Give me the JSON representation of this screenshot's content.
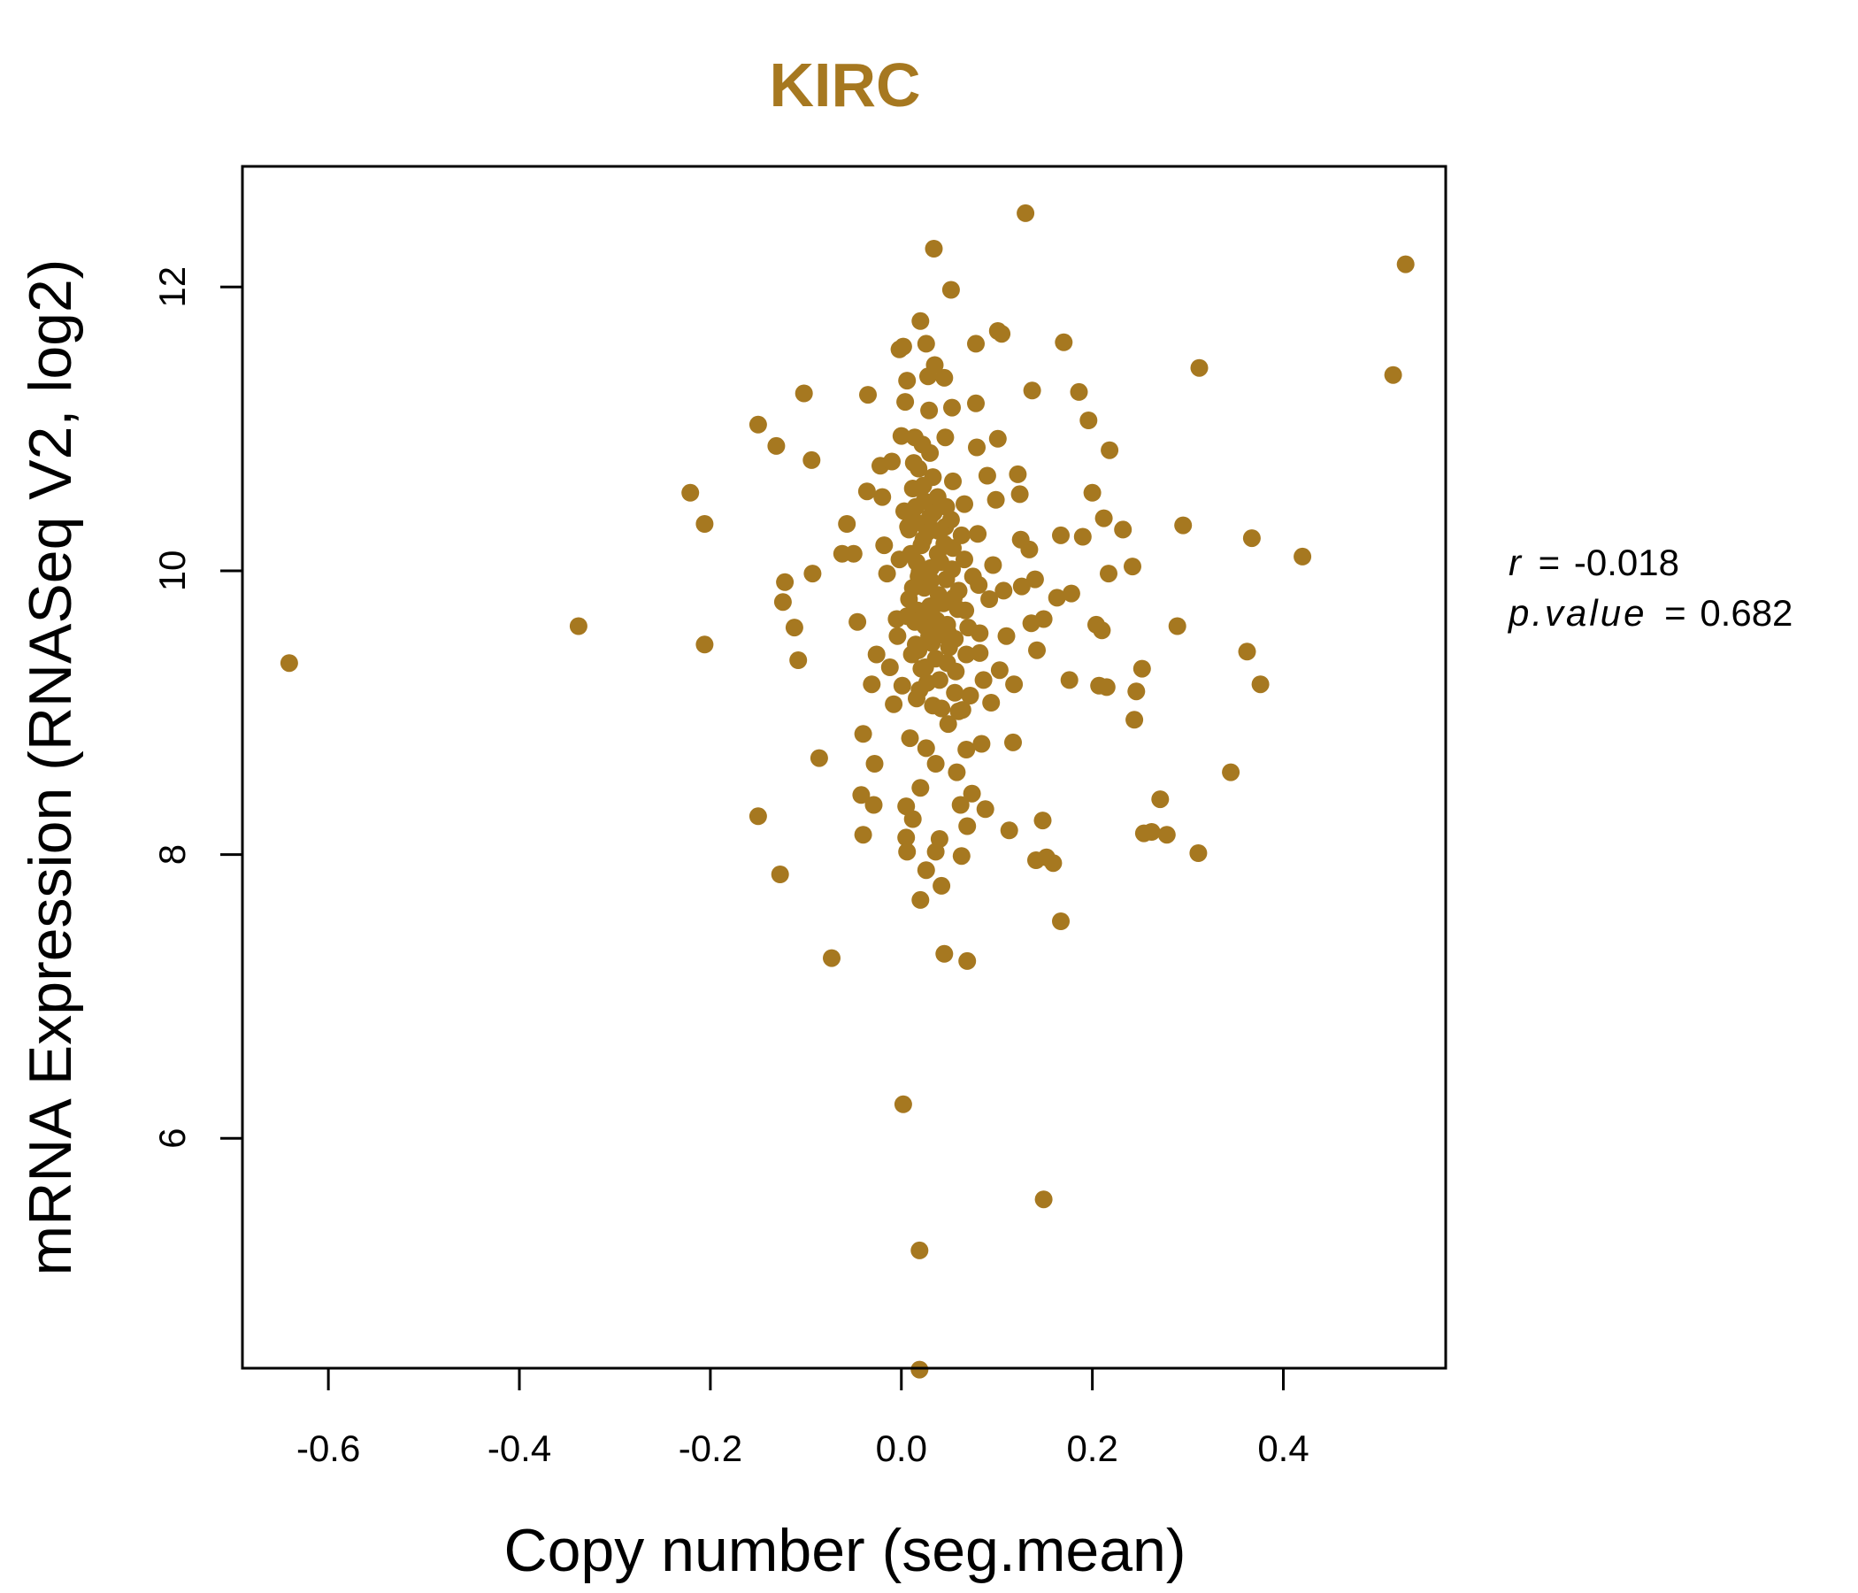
{
  "colors": {
    "point": "#A67820",
    "title": "#A67820",
    "axis": "#000000"
  },
  "stats": {
    "r_symbol": "r",
    "r_equals": "=",
    "r_value": "-0.018",
    "p_symbol": "p.value",
    "p_equals": "=",
    "p_value": "0.682"
  },
  "chart_data": {
    "type": "scatter",
    "title": "KIRC",
    "xlabel": "Copy number (seg.mean)",
    "ylabel": "mRNA Expression (RNASeq V2, log2)",
    "xlim": [
      -0.69,
      0.57
    ],
    "ylim": [
      4.38,
      12.85
    ],
    "xticks": [
      {
        "value": -0.6,
        "label": "-0.6"
      },
      {
        "value": -0.4,
        "label": "-0.4"
      },
      {
        "value": -0.2,
        "label": "-0.2"
      },
      {
        "value": 0.0,
        "label": "0.0"
      },
      {
        "value": 0.2,
        "label": "0.2"
      },
      {
        "value": 0.4,
        "label": "0.4"
      }
    ],
    "yticks": [
      {
        "value": 6,
        "label": "6"
      },
      {
        "value": 8,
        "label": "8"
      },
      {
        "value": 10,
        "label": "10"
      },
      {
        "value": 12,
        "label": "12"
      }
    ],
    "points": [
      [
        -0.641,
        9.35
      ],
      [
        -0.338,
        9.61
      ],
      [
        -0.221,
        10.55
      ],
      [
        -0.206,
        10.33
      ],
      [
        -0.206,
        9.48
      ],
      [
        -0.15,
        11.03
      ],
      [
        -0.131,
        10.88
      ],
      [
        -0.15,
        8.27
      ],
      [
        -0.127,
        7.86
      ],
      [
        -0.122,
        9.92
      ],
      [
        -0.124,
        9.78
      ],
      [
        -0.112,
        9.6
      ],
      [
        -0.108,
        9.37
      ],
      [
        -0.102,
        11.25
      ],
      [
        -0.094,
        10.78
      ],
      [
        -0.093,
        9.98
      ],
      [
        -0.086,
        8.68
      ],
      [
        -0.073,
        7.27
      ],
      [
        -0.062,
        10.12
      ],
      [
        -0.057,
        10.33
      ],
      [
        -0.05,
        10.12
      ],
      [
        -0.046,
        9.64
      ],
      [
        -0.042,
        8.42
      ],
      [
        -0.04,
        8.85
      ],
      [
        -0.04,
        8.14
      ],
      [
        -0.035,
        11.24
      ],
      [
        -0.036,
        10.56
      ],
      [
        -0.031,
        9.2
      ],
      [
        -0.029,
        8.35
      ],
      [
        -0.028,
        8.64
      ],
      [
        -0.026,
        9.41
      ],
      [
        -0.022,
        10.74
      ],
      [
        -0.02,
        10.52
      ],
      [
        -0.018,
        10.18
      ],
      [
        -0.015,
        9.98
      ],
      [
        -0.012,
        9.32
      ],
      [
        -0.01,
        10.77
      ],
      [
        -0.008,
        9.06
      ],
      [
        -0.005,
        9.66
      ],
      [
        -0.002,
        11.56
      ],
      [
        0.0,
        10.95
      ],
      [
        0.002,
        11.58
      ],
      [
        0.004,
        11.19
      ],
      [
        0.006,
        11.34
      ],
      [
        0.007,
        10.31
      ],
      [
        0.008,
        9.8
      ],
      [
        0.009,
        8.82
      ],
      [
        0.005,
        8.34
      ],
      [
        0.005,
        8.12
      ],
      [
        0.006,
        8.02
      ],
      [
        0.002,
        6.24
      ],
      [
        0.012,
        8.25
      ],
      [
        0.014,
        10.94
      ],
      [
        0.015,
        10.45
      ],
      [
        0.016,
        10.06
      ],
      [
        0.017,
        9.72
      ],
      [
        0.018,
        9.44
      ],
      [
        0.019,
        9.16
      ],
      [
        0.02,
        11.76
      ],
      [
        0.02,
        8.47
      ],
      [
        0.02,
        7.68
      ],
      [
        0.019,
        5.21
      ],
      [
        0.019,
        4.37
      ],
      [
        0.022,
        10.89
      ],
      [
        0.023,
        10.6
      ],
      [
        0.023,
        10.22
      ],
      [
        0.024,
        9.88
      ],
      [
        0.025,
        9.61
      ],
      [
        0.025,
        9.32
      ],
      [
        0.026,
        11.6
      ],
      [
        0.026,
        8.75
      ],
      [
        0.026,
        7.89
      ],
      [
        0.028,
        11.37
      ],
      [
        0.029,
        11.13
      ],
      [
        0.03,
        10.83
      ],
      [
        0.03,
        10.38
      ],
      [
        0.031,
        10.02
      ],
      [
        0.032,
        9.73
      ],
      [
        0.032,
        9.49
      ],
      [
        0.033,
        9.05
      ],
      [
        0.034,
        12.27
      ],
      [
        0.035,
        11.45
      ],
      [
        0.036,
        8.64
      ],
      [
        0.036,
        8.02
      ],
      [
        0.038,
        10.52
      ],
      [
        0.038,
        10.12
      ],
      [
        0.039,
        9.83
      ],
      [
        0.04,
        9.55
      ],
      [
        0.04,
        9.23
      ],
      [
        0.04,
        8.11
      ],
      [
        0.042,
        7.78
      ],
      [
        0.045,
        11.36
      ],
      [
        0.046,
        10.94
      ],
      [
        0.046,
        10.31
      ],
      [
        0.047,
        9.94
      ],
      [
        0.048,
        9.62
      ],
      [
        0.048,
        9.35
      ],
      [
        0.049,
        8.92
      ],
      [
        0.045,
        7.3
      ],
      [
        0.052,
        11.98
      ],
      [
        0.053,
        11.15
      ],
      [
        0.054,
        10.63
      ],
      [
        0.054,
        10.16
      ],
      [
        0.055,
        9.81
      ],
      [
        0.056,
        9.52
      ],
      [
        0.058,
        8.58
      ],
      [
        0.06,
        9.01
      ],
      [
        0.062,
        8.35
      ],
      [
        0.063,
        7.99
      ],
      [
        0.066,
        10.47
      ],
      [
        0.066,
        10.08
      ],
      [
        0.067,
        9.72
      ],
      [
        0.068,
        9.41
      ],
      [
        0.068,
        8.74
      ],
      [
        0.069,
        8.2
      ],
      [
        0.069,
        7.25
      ],
      [
        0.072,
        9.12
      ],
      [
        0.074,
        8.43
      ],
      [
        0.078,
        11.6
      ],
      [
        0.078,
        11.18
      ],
      [
        0.079,
        10.87
      ],
      [
        0.08,
        10.26
      ],
      [
        0.081,
        9.9
      ],
      [
        0.082,
        9.56
      ],
      [
        0.084,
        8.78
      ],
      [
        0.086,
        9.23
      ],
      [
        0.088,
        8.32
      ],
      [
        0.09,
        10.67
      ],
      [
        0.092,
        9.8
      ],
      [
        0.094,
        9.07
      ],
      [
        0.096,
        10.04
      ],
      [
        0.099,
        10.5
      ],
      [
        0.101,
        11.69
      ],
      [
        0.101,
        10.93
      ],
      [
        0.103,
        9.3
      ],
      [
        0.105,
        11.67
      ],
      [
        0.107,
        9.86
      ],
      [
        0.11,
        9.54
      ],
      [
        0.113,
        8.17
      ],
      [
        0.117,
        8.79
      ],
      [
        0.118,
        9.2
      ],
      [
        0.122,
        10.68
      ],
      [
        0.124,
        10.54
      ],
      [
        0.125,
        10.22
      ],
      [
        0.126,
        9.89
      ],
      [
        0.13,
        12.52
      ],
      [
        0.134,
        10.15
      ],
      [
        0.136,
        9.63
      ],
      [
        0.137,
        11.27
      ],
      [
        0.14,
        9.94
      ],
      [
        0.141,
        7.96
      ],
      [
        0.142,
        9.44
      ],
      [
        0.148,
        8.24
      ],
      [
        0.149,
        9.66
      ],
      [
        0.149,
        5.57
      ],
      [
        0.152,
        7.98
      ],
      [
        0.159,
        7.94
      ],
      [
        0.163,
        9.81
      ],
      [
        0.167,
        7.53
      ],
      [
        0.167,
        10.25
      ],
      [
        0.17,
        11.61
      ],
      [
        0.176,
        9.23
      ],
      [
        0.178,
        9.84
      ],
      [
        0.186,
        11.26
      ],
      [
        0.19,
        10.24
      ],
      [
        0.196,
        11.06
      ],
      [
        0.2,
        10.55
      ],
      [
        0.204,
        9.62
      ],
      [
        0.207,
        9.19
      ],
      [
        0.21,
        9.58
      ],
      [
        0.212,
        10.37
      ],
      [
        0.215,
        9.18
      ],
      [
        0.217,
        9.98
      ],
      [
        0.218,
        10.85
      ],
      [
        0.232,
        10.29
      ],
      [
        0.242,
        10.03
      ],
      [
        0.244,
        8.95
      ],
      [
        0.246,
        9.15
      ],
      [
        0.252,
        9.31
      ],
      [
        0.254,
        8.15
      ],
      [
        0.262,
        8.16
      ],
      [
        0.271,
        8.39
      ],
      [
        0.278,
        8.14
      ],
      [
        0.289,
        9.61
      ],
      [
        0.295,
        10.32
      ],
      [
        0.311,
        8.01
      ],
      [
        0.312,
        11.43
      ],
      [
        0.345,
        8.58
      ],
      [
        0.362,
        9.43
      ],
      [
        0.367,
        10.23
      ],
      [
        0.376,
        9.2
      ],
      [
        0.42,
        10.1
      ],
      [
        0.515,
        11.38
      ],
      [
        0.528,
        12.16
      ],
      [
        0.01,
        10.12
      ],
      [
        0.012,
        9.88
      ],
      [
        0.014,
        9.64
      ],
      [
        0.016,
        10.34
      ],
      [
        0.018,
        9.96
      ],
      [
        0.021,
        10.18
      ],
      [
        0.024,
        9.71
      ],
      [
        0.027,
        10.27
      ],
      [
        0.029,
        9.54
      ],
      [
        0.031,
        9.93
      ],
      [
        0.034,
        10.41
      ],
      [
        0.037,
        9.65
      ],
      [
        0.041,
        10.06
      ],
      [
        0.044,
        9.77
      ],
      [
        0.047,
        10.45
      ],
      [
        0.05,
        9.46
      ],
      [
        0.053,
        10.01
      ],
      [
        0.057,
        9.29
      ],
      [
        0.06,
        9.86
      ],
      [
        0.063,
        10.25
      ],
      [
        0.012,
        10.58
      ],
      [
        0.015,
        9.48
      ],
      [
        0.018,
        10.72
      ],
      [
        0.021,
        9.31
      ],
      [
        0.024,
        10.49
      ],
      [
        0.027,
        9.21
      ],
      [
        0.03,
        9.75
      ],
      [
        0.033,
        10.66
      ],
      [
        0.036,
        9.38
      ],
      [
        0.039,
        10.28
      ],
      [
        -0.004,
        9.54
      ],
      [
        -0.002,
        10.08
      ],
      [
        0.001,
        9.19
      ],
      [
        0.003,
        10.42
      ],
      [
        0.006,
        9.68
      ],
      [
        0.008,
        10.29
      ],
      [
        0.011,
        9.41
      ],
      [
        0.013,
        10.76
      ],
      [
        0.016,
        9.1
      ],
      [
        0.019,
        9.99
      ],
      [
        0.042,
        9.03
      ],
      [
        0.045,
        10.19
      ],
      [
        0.049,
        9.56
      ],
      [
        0.052,
        10.36
      ],
      [
        0.056,
        9.14
      ],
      [
        0.059,
        9.73
      ],
      [
        0.064,
        9.02
      ],
      [
        0.07,
        9.6
      ],
      [
        0.075,
        9.96
      ],
      [
        0.082,
        9.42
      ]
    ]
  }
}
